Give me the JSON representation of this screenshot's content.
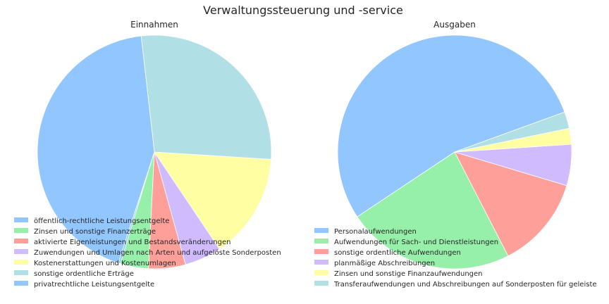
{
  "figure": {
    "title": "Verwaltungssteuerung und -service"
  },
  "chart_data": [
    {
      "type": "pie",
      "title": "Einnahmen",
      "start_angle_deg": -108,
      "direction": "counterclockwise",
      "labels": [
        "öffentlich-rechtliche Leistungsentgelte",
        "Zinsen und sonstige Finanzerträge",
        "aktivierte Eigenleistungen und Bestandsveränderungen",
        "Zuwendungen und Umlagen nach Arten und aufgelöste Sonderposten",
        "Kostenerstattungen und Kostenumlagen",
        "sonstige ordentliche Erträge",
        "privatrechtliche Leistungsentgelte"
      ],
      "values": [
        0.3,
        3.9,
        5.1,
        5.1,
        14.6,
        27.8,
        43.2
      ],
      "colors": [
        "#92c6ff",
        "#97f0aa",
        "#ff9f9a",
        "#d0bbff",
        "#fffea3",
        "#b0e0e6",
        "#92c6ff"
      ],
      "legend_position": "lower-left"
    },
    {
      "type": "pie",
      "title": "Ausgaben",
      "start_angle_deg": 20,
      "direction": "counterclockwise",
      "labels": [
        "Personalaufwendungen",
        "Aufwendungen für Sach- und Dienstleistungen",
        "sonstige ordentliche Aufwendungen",
        "planmäßige Abschreibungen",
        "Zinsen und sonstige Finanzaufwendungen",
        "Transferaufwendungen und Abschreibungen auf Sonderposten für geleiste"
      ],
      "values": [
        53.8,
        23.2,
        12.8,
        5.7,
        2.2,
        2.3
      ],
      "colors": [
        "#92c6ff",
        "#97f0aa",
        "#ff9f9a",
        "#d0bbff",
        "#fffea3",
        "#b0e0e6"
      ],
      "legend_position": "lower-left"
    }
  ]
}
